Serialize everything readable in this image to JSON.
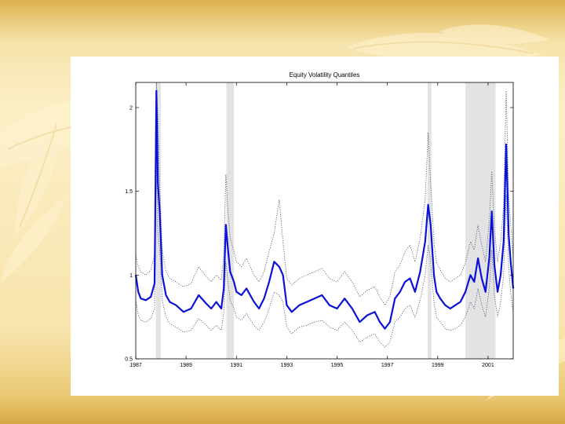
{
  "chart_data": {
    "type": "line",
    "title": "Equity Volatility Quantiles",
    "xlabel": "",
    "ylabel": "",
    "xlim": [
      1987.0,
      2002.0
    ],
    "ylim": [
      0.5,
      2.15
    ],
    "x_ticks": [
      {
        "value": 1987,
        "label": "1987"
      },
      {
        "value": 1989,
        "label": "1989"
      },
      {
        "value": 1991,
        "label": "1991"
      },
      {
        "value": 1993,
        "label": "1993"
      },
      {
        "value": 1995,
        "label": "1995"
      },
      {
        "value": 1997,
        "label": "1997"
      },
      {
        "value": 1999,
        "label": "1999"
      },
      {
        "value": 2001,
        "label": "2001"
      }
    ],
    "y_ticks": [
      {
        "value": 0.5,
        "label": "0.5"
      },
      {
        "value": 1,
        "label": "1"
      },
      {
        "value": 1.5,
        "label": "1.5"
      },
      {
        "value": 2,
        "label": "2"
      }
    ],
    "shaded_periods": [
      [
        1987.8,
        1988.0
      ],
      [
        1990.6,
        1990.9
      ],
      [
        1998.6,
        1998.75
      ],
      [
        2000.1,
        2001.3
      ]
    ],
    "grid": false,
    "colors": {
      "median": "#0b12d8",
      "quantile": "#4a5277",
      "shade": "#e3e3e3"
    },
    "series": [
      {
        "style": "median",
        "x": [
          1987.0,
          1987.1,
          1987.2,
          1987.4,
          1987.6,
          1987.75,
          1987.82,
          1987.88,
          1987.95,
          1988.05,
          1988.2,
          1988.35,
          1988.6,
          1988.9,
          1989.2,
          1989.5,
          1989.8,
          1990.0,
          1990.2,
          1990.4,
          1990.5,
          1990.58,
          1990.65,
          1990.75,
          1990.9,
          1991.0,
          1991.2,
          1991.4,
          1991.7,
          1991.9,
          1992.1,
          1992.3,
          1992.5,
          1992.7,
          1992.85,
          1993.0,
          1993.2,
          1993.5,
          1993.8,
          1994.1,
          1994.4,
          1994.7,
          1995.0,
          1995.3,
          1995.6,
          1995.9,
          1996.2,
          1996.5,
          1996.7,
          1996.9,
          1997.1,
          1997.3,
          1997.5,
          1997.7,
          1997.9,
          1998.1,
          1998.3,
          1998.5,
          1998.62,
          1998.72,
          1998.85,
          1998.95,
          1999.1,
          1999.3,
          1999.5,
          1999.7,
          1999.9,
          2000.1,
          2000.3,
          2000.45,
          2000.6,
          2000.75,
          2000.9,
          2001.05,
          2001.15,
          2001.25,
          2001.38,
          2001.5,
          2001.62,
          2001.72,
          2001.82,
          2001.9,
          2002.0
        ],
        "y": [
          1.0,
          0.9,
          0.86,
          0.85,
          0.87,
          0.95,
          2.1,
          1.55,
          1.38,
          1.0,
          0.88,
          0.84,
          0.82,
          0.78,
          0.8,
          0.88,
          0.83,
          0.8,
          0.84,
          0.8,
          0.92,
          1.3,
          1.18,
          1.02,
          0.96,
          0.9,
          0.88,
          0.92,
          0.84,
          0.8,
          0.86,
          0.96,
          1.08,
          1.05,
          1.0,
          0.82,
          0.78,
          0.82,
          0.84,
          0.86,
          0.88,
          0.82,
          0.8,
          0.86,
          0.8,
          0.72,
          0.76,
          0.78,
          0.72,
          0.68,
          0.72,
          0.86,
          0.9,
          0.96,
          0.98,
          0.9,
          1.02,
          1.2,
          1.42,
          1.3,
          1.0,
          0.9,
          0.86,
          0.82,
          0.8,
          0.82,
          0.84,
          0.9,
          1.0,
          0.96,
          1.1,
          0.98,
          0.9,
          1.1,
          1.38,
          1.06,
          0.9,
          1.0,
          1.2,
          1.78,
          1.24,
          1.08,
          0.92
        ]
      },
      {
        "style": "upper",
        "x": [
          1987.0,
          1987.1,
          1987.2,
          1987.4,
          1987.6,
          1987.75,
          1987.82,
          1987.88,
          1987.95,
          1988.05,
          1988.2,
          1988.35,
          1988.6,
          1988.9,
          1989.2,
          1989.5,
          1989.8,
          1990.0,
          1990.2,
          1990.4,
          1990.5,
          1990.58,
          1990.65,
          1990.75,
          1990.9,
          1991.0,
          1991.2,
          1991.4,
          1991.7,
          1991.9,
          1992.1,
          1992.3,
          1992.5,
          1992.7,
          1992.85,
          1993.0,
          1993.2,
          1993.5,
          1993.8,
          1994.1,
          1994.4,
          1994.7,
          1995.0,
          1995.3,
          1995.6,
          1995.9,
          1996.2,
          1996.5,
          1996.7,
          1996.9,
          1997.1,
          1997.3,
          1997.5,
          1997.7,
          1997.9,
          1998.1,
          1998.3,
          1998.5,
          1998.62,
          1998.72,
          1998.85,
          1998.95,
          1999.1,
          1999.3,
          1999.5,
          1999.7,
          1999.9,
          2000.1,
          2000.3,
          2000.45,
          2000.6,
          2000.75,
          2000.9,
          2001.05,
          2001.15,
          2001.25,
          2001.38,
          2001.5,
          2001.62,
          2001.72,
          2001.82,
          2001.9,
          2002.0
        ],
        "y": [
          1.12,
          1.05,
          1.02,
          1.0,
          1.03,
          1.12,
          2.15,
          1.95,
          1.55,
          1.15,
          1.02,
          0.98,
          0.96,
          0.93,
          0.95,
          1.05,
          0.99,
          0.96,
          1.0,
          0.97,
          1.12,
          1.6,
          1.42,
          1.22,
          1.14,
          1.08,
          1.05,
          1.1,
          1.0,
          0.96,
          1.02,
          1.14,
          1.25,
          1.45,
          1.2,
          0.98,
          0.94,
          0.98,
          1.0,
          1.02,
          1.04,
          0.98,
          0.96,
          1.02,
          0.96,
          0.87,
          0.91,
          0.93,
          0.87,
          0.82,
          0.87,
          1.02,
          1.06,
          1.14,
          1.18,
          1.08,
          1.22,
          1.45,
          1.85,
          1.55,
          1.2,
          1.08,
          1.03,
          0.98,
          0.96,
          0.98,
          1.0,
          1.07,
          1.2,
          1.15,
          1.3,
          1.18,
          1.08,
          1.32,
          1.62,
          1.28,
          1.08,
          1.2,
          1.42,
          2.1,
          1.48,
          1.3,
          1.1
        ]
      },
      {
        "style": "lower",
        "x": [
          1987.0,
          1987.1,
          1987.2,
          1987.4,
          1987.6,
          1987.75,
          1987.82,
          1987.88,
          1987.95,
          1988.05,
          1988.2,
          1988.35,
          1988.6,
          1988.9,
          1989.2,
          1989.5,
          1989.8,
          1990.0,
          1990.2,
          1990.4,
          1990.5,
          1990.58,
          1990.65,
          1990.75,
          1990.9,
          1991.0,
          1991.2,
          1991.4,
          1991.7,
          1991.9,
          1992.1,
          1992.3,
          1992.5,
          1992.7,
          1992.85,
          1993.0,
          1993.2,
          1993.5,
          1993.8,
          1994.1,
          1994.4,
          1994.7,
          1995.0,
          1995.3,
          1995.6,
          1995.9,
          1996.2,
          1996.5,
          1996.7,
          1996.9,
          1997.1,
          1997.3,
          1997.5,
          1997.7,
          1997.9,
          1998.1,
          1998.3,
          1998.5,
          1998.62,
          1998.72,
          1998.85,
          1998.95,
          1999.1,
          1999.3,
          1999.5,
          1999.7,
          1999.9,
          2000.1,
          2000.3,
          2000.45,
          2000.6,
          2000.75,
          2000.9,
          2001.05,
          2001.15,
          2001.25,
          2001.38,
          2001.5,
          2001.62,
          2001.72,
          2001.82,
          2001.9,
          2002.0
        ],
        "y": [
          0.85,
          0.76,
          0.73,
          0.72,
          0.74,
          0.8,
          1.7,
          1.25,
          1.15,
          0.85,
          0.75,
          0.71,
          0.69,
          0.66,
          0.67,
          0.74,
          0.7,
          0.67,
          0.7,
          0.67,
          0.78,
          1.08,
          0.98,
          0.85,
          0.8,
          0.75,
          0.73,
          0.77,
          0.7,
          0.67,
          0.72,
          0.8,
          0.9,
          0.88,
          0.84,
          0.69,
          0.65,
          0.69,
          0.7,
          0.72,
          0.73,
          0.69,
          0.67,
          0.72,
          0.67,
          0.6,
          0.63,
          0.65,
          0.6,
          0.57,
          0.6,
          0.72,
          0.75,
          0.8,
          0.82,
          0.75,
          0.85,
          1.0,
          1.18,
          1.08,
          0.84,
          0.75,
          0.72,
          0.68,
          0.67,
          0.68,
          0.7,
          0.75,
          0.84,
          0.8,
          0.92,
          0.82,
          0.75,
          0.92,
          1.15,
          0.88,
          0.75,
          0.84,
          1.0,
          1.48,
          1.04,
          0.9,
          0.77
        ]
      }
    ]
  }
}
